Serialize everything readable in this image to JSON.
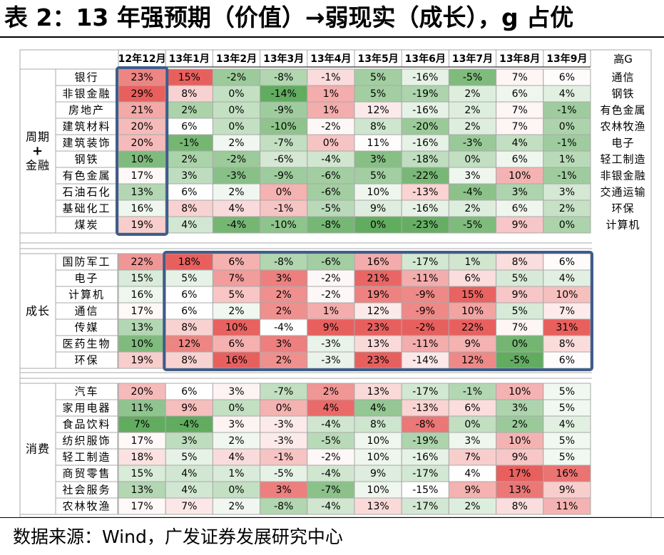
{
  "title": "表 2：13 年强预期（价值）→弱现实（成长），g 占优",
  "source": "数据来源：Wind，广发证券发展研究中心",
  "chart_data": {
    "type": "heatmap",
    "columns": [
      "12年12月",
      "13年1月",
      "13年2月",
      "13年3月",
      "13年4月",
      "13年5月",
      "13年6月",
      "13年7月",
      "13年8月",
      "13年9月"
    ],
    "high_g_header": "高G",
    "high_g_list": [
      "通信",
      "钢铁",
      "有色金属",
      "农林牧渔",
      "电子",
      "轻工制造",
      "非银金融",
      "交通运输",
      "环保",
      "计算机"
    ],
    "groups": [
      {
        "name": "周期+金融",
        "name_lines": [
          "周期",
          "+",
          "金融"
        ],
        "rows": [
          {
            "label": "银行",
            "values": [
              23,
              15,
              -2,
              -8,
              -1,
              5,
              -16,
              -5,
              7,
              6
            ]
          },
          {
            "label": "非银金融",
            "values": [
              29,
              8,
              0,
              -14,
              1,
              5,
              -19,
              2,
              6,
              4
            ]
          },
          {
            "label": "房地产",
            "values": [
              21,
              2,
              0,
              -9,
              1,
              12,
              -16,
              2,
              7,
              -1
            ]
          },
          {
            "label": "建筑材料",
            "values": [
              20,
              6,
              0,
              -10,
              -2,
              8,
              -20,
              2,
              7,
              0
            ]
          },
          {
            "label": "建筑装饰",
            "values": [
              20,
              -1,
              2,
              -7,
              0,
              11,
              -16,
              -3,
              4,
              -1
            ]
          },
          {
            "label": "钢铁",
            "values": [
              10,
              2,
              -2,
              -6,
              -4,
              3,
              -18,
              0,
              6,
              1
            ]
          },
          {
            "label": "有色金属",
            "values": [
              17,
              3,
              -3,
              -9,
              -6,
              5,
              -22,
              3,
              10,
              -1
            ]
          },
          {
            "label": "石油石化",
            "values": [
              13,
              6,
              2,
              0,
              -6,
              10,
              -13,
              -4,
              3,
              3
            ]
          },
          {
            "label": "基础化工",
            "values": [
              16,
              8,
              4,
              -1,
              -5,
              9,
              -16,
              2,
              6,
              2
            ]
          },
          {
            "label": "煤炭",
            "values": [
              19,
              4,
              -4,
              -10,
              -8,
              0,
              -23,
              -5,
              9,
              0
            ]
          }
        ]
      },
      {
        "name": "成长",
        "name_lines": [
          "成长"
        ],
        "rows": [
          {
            "label": "国防军工",
            "values": [
              22,
              18,
              6,
              -8,
              -6,
              16,
              -17,
              1,
              8,
              6
            ]
          },
          {
            "label": "电子",
            "values": [
              15,
              5,
              7,
              3,
              -2,
              21,
              -11,
              6,
              5,
              4
            ]
          },
          {
            "label": "计算机",
            "values": [
              16,
              6,
              5,
              2,
              -2,
              19,
              -9,
              15,
              9,
              10
            ]
          },
          {
            "label": "通信",
            "values": [
              17,
              6,
              2,
              2,
              1,
              12,
              -9,
              10,
              5,
              7
            ]
          },
          {
            "label": "传媒",
            "values": [
              13,
              8,
              10,
              -4,
              9,
              23,
              -2,
              22,
              7,
              31
            ]
          },
          {
            "label": "医药生物",
            "values": [
              10,
              12,
              6,
              3,
              -3,
              13,
              -11,
              9,
              0,
              8
            ]
          },
          {
            "label": "环保",
            "values": [
              19,
              8,
              16,
              2,
              -3,
              23,
              -14,
              12,
              -5,
              6
            ]
          }
        ]
      },
      {
        "name": "消费",
        "name_lines": [
          "消费"
        ],
        "rows": [
          {
            "label": "汽车",
            "values": [
              20,
              6,
              3,
              -7,
              2,
              13,
              -17,
              -1,
              10,
              5
            ]
          },
          {
            "label": "家用电器",
            "values": [
              11,
              9,
              0,
              0,
              4,
              4,
              -13,
              6,
              3,
              5
            ]
          },
          {
            "label": "食品饮料",
            "values": [
              7,
              -4,
              3,
              -3,
              -4,
              8,
              -8,
              0,
              2,
              4
            ]
          },
          {
            "label": "纺织服饰",
            "values": [
              17,
              3,
              2,
              -3,
              -5,
              10,
              -19,
              3,
              10,
              5
            ]
          },
          {
            "label": "轻工制造",
            "values": [
              18,
              5,
              4,
              -1,
              -2,
              10,
              -16,
              7,
              9,
              5
            ]
          },
          {
            "label": "商贸零售",
            "values": [
              15,
              4,
              1,
              -5,
              -4,
              9,
              -17,
              4,
              17,
              16
            ]
          },
          {
            "label": "社会服务",
            "values": [
              13,
              4,
              0,
              3,
              -7,
              10,
              -15,
              9,
              13,
              9
            ]
          },
          {
            "label": "农林牧渔",
            "values": [
              17,
              7,
              2,
              -8,
              -4,
              13,
              -17,
              2,
              8,
              11
            ]
          }
        ]
      }
    ],
    "highlight_boxes": [
      {
        "group": 0,
        "column_from": 0,
        "column_to": 0
      },
      {
        "group": 1,
        "column_from": 1,
        "column_to": 9
      }
    ],
    "colors": {
      "high": "#e8605e",
      "mid": "#ffffff",
      "low": "#62ac60",
      "box": "#3e5d89",
      "grid": "#a9a9a9"
    }
  }
}
